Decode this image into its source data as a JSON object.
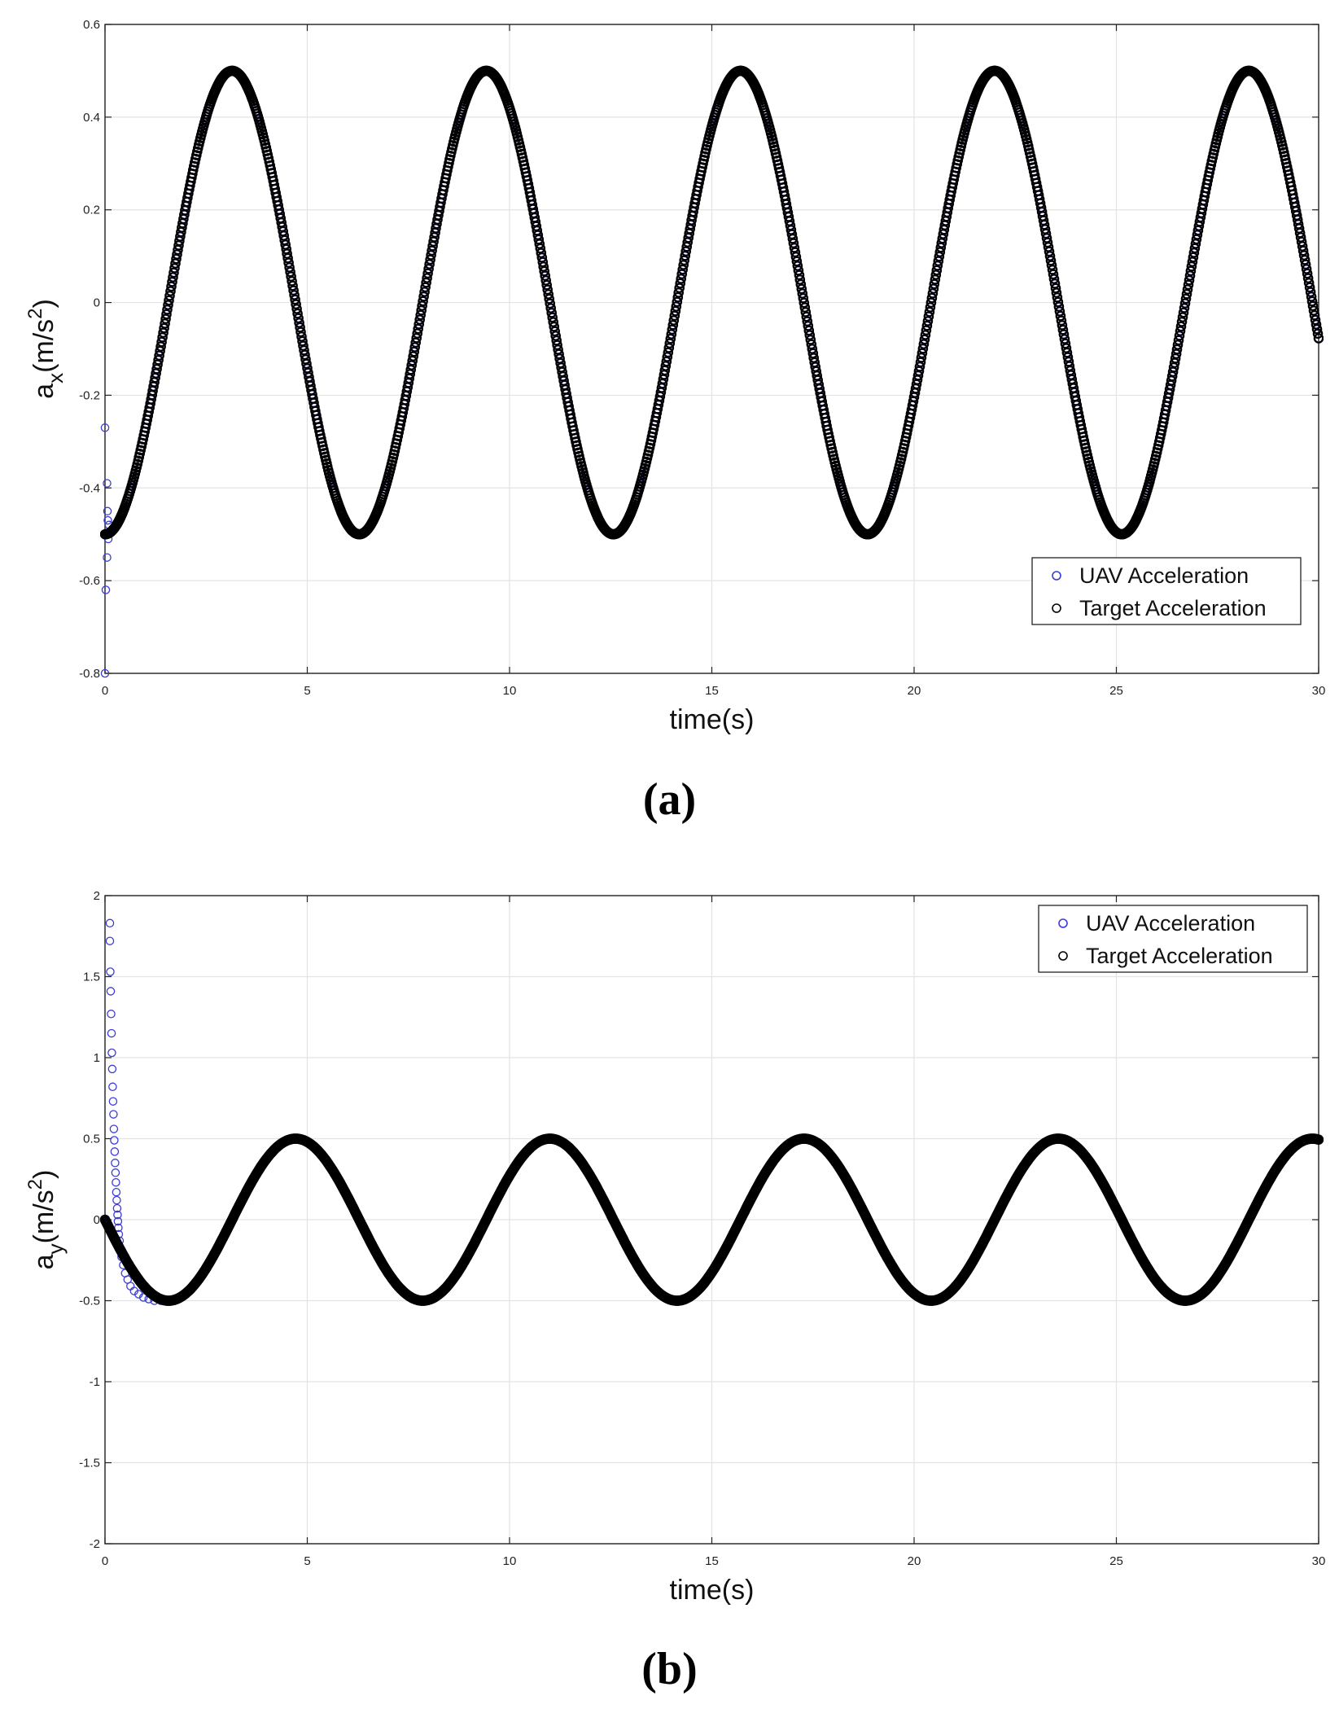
{
  "chart_data": [
    {
      "type": "scatter",
      "panel_label": "a",
      "xlabel": "time(s)",
      "ylabel": {
        "base": "a",
        "subscript": "x",
        "unit": "(m/s",
        "unit_sup": "2",
        "unit_close": ")"
      },
      "xlim": [
        0,
        30
      ],
      "ylim": [
        -0.8,
        0.6
      ],
      "xticks": [
        0,
        5,
        10,
        15,
        20,
        25,
        30
      ],
      "yticks": [
        -0.8,
        -0.6,
        -0.4,
        -0.2,
        0,
        0.2,
        0.4,
        0.6
      ],
      "grid": true,
      "legend_position": "bottom-right",
      "series": [
        {
          "name": "UAV Acceleration",
          "color": "#3b3bd6",
          "marker": "open-circle",
          "function": "-0.5*cos(t)",
          "t_range": [
            0,
            30
          ],
          "transient_points": [
            [
              0.0,
              -0.8
            ],
            [
              0.0,
              -0.27
            ],
            [
              0.02,
              -0.62
            ],
            [
              0.05,
              -0.39
            ],
            [
              0.05,
              -0.55
            ],
            [
              0.06,
              -0.45
            ],
            [
              0.07,
              -0.47
            ],
            [
              0.08,
              -0.51
            ],
            [
              0.1,
              -0.48
            ]
          ]
        },
        {
          "name": "Target Acceleration",
          "color": "#000000",
          "marker": "open-circle",
          "function": "-0.5*cos(t)",
          "t_range": [
            0,
            30
          ]
        }
      ]
    },
    {
      "type": "scatter",
      "panel_label": "b",
      "xlabel": "time(s)",
      "ylabel": {
        "base": "a",
        "subscript": "y",
        "unit": "(m/s",
        "unit_sup": "2",
        "unit_close": ")"
      },
      "xlim": [
        0,
        30
      ],
      "ylim": [
        -2,
        2
      ],
      "xticks": [
        0,
        5,
        10,
        15,
        20,
        25,
        30
      ],
      "yticks": [
        -2,
        -1.5,
        -1,
        -0.5,
        0,
        0.5,
        1,
        1.5,
        2
      ],
      "grid": true,
      "legend_position": "top-right",
      "series": [
        {
          "name": "UAV Acceleration",
          "color": "#3b3bd6",
          "marker": "open-circle",
          "function": "-0.5*sin(t)",
          "t_range": [
            0,
            30
          ],
          "transient_points": [
            [
              0.12,
              1.83
            ],
            [
              0.12,
              1.72
            ],
            [
              0.13,
              1.53
            ],
            [
              0.14,
              1.41
            ],
            [
              0.15,
              1.27
            ],
            [
              0.16,
              1.15
            ],
            [
              0.17,
              1.03
            ],
            [
              0.18,
              0.93
            ],
            [
              0.19,
              0.82
            ],
            [
              0.2,
              0.73
            ],
            [
              0.21,
              0.65
            ],
            [
              0.22,
              0.56
            ],
            [
              0.23,
              0.49
            ],
            [
              0.24,
              0.42
            ],
            [
              0.25,
              0.35
            ],
            [
              0.26,
              0.29
            ],
            [
              0.27,
              0.23
            ],
            [
              0.28,
              0.17
            ],
            [
              0.29,
              0.12
            ],
            [
              0.3,
              0.07
            ],
            [
              0.31,
              0.03
            ],
            [
              0.32,
              -0.01
            ],
            [
              0.33,
              -0.05
            ],
            [
              0.34,
              -0.09
            ],
            [
              0.36,
              -0.13
            ],
            [
              0.38,
              -0.18
            ],
            [
              0.41,
              -0.23
            ],
            [
              0.45,
              -0.28
            ],
            [
              0.5,
              -0.33
            ],
            [
              0.56,
              -0.37
            ],
            [
              0.63,
              -0.41
            ],
            [
              0.72,
              -0.44
            ],
            [
              0.83,
              -0.46
            ],
            [
              0.95,
              -0.48
            ],
            [
              1.08,
              -0.49
            ],
            [
              1.22,
              -0.5
            ],
            [
              1.38,
              -0.5
            ]
          ]
        },
        {
          "name": "Target Acceleration",
          "color": "#000000",
          "marker": "open-circle",
          "function": "-0.5*sin(t)",
          "t_range": [
            0,
            30
          ]
        }
      ]
    }
  ]
}
